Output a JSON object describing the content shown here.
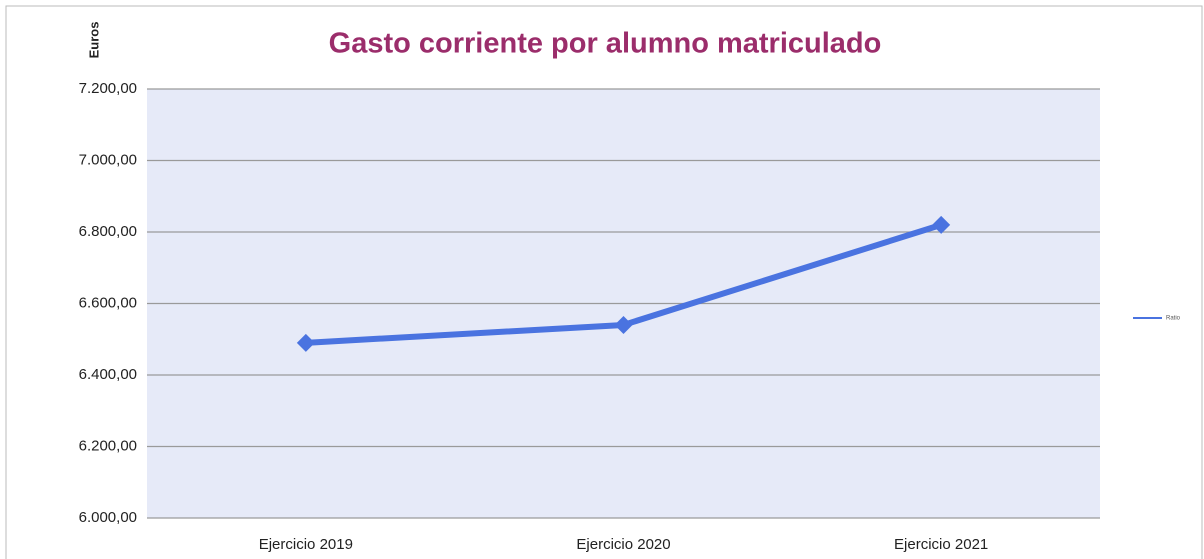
{
  "chart_data": {
    "type": "line",
    "title": "Gasto corriente por alumno matriculado",
    "y_label": "Euros",
    "categories": [
      "Ejercicio 2019",
      "Ejercicio 2020",
      "Ejercicio 2021"
    ],
    "series": [
      {
        "name": "Ratio",
        "color": "#4a73e0",
        "values": [
          6490,
          6540,
          6820
        ]
      }
    ],
    "ylim": [
      6000,
      7200
    ],
    "yticks": [
      {
        "value": 6000,
        "label": "6.000,00"
      },
      {
        "value": 6200,
        "label": "6.200,00"
      },
      {
        "value": 6400,
        "label": "6.400,00"
      },
      {
        "value": 6600,
        "label": "6.600,00"
      },
      {
        "value": 6800,
        "label": "6.800,00"
      },
      {
        "value": 7000,
        "label": "7.000,00"
      },
      {
        "value": 7200,
        "label": "7.200,00"
      }
    ],
    "grid": true,
    "legend": "right"
  }
}
